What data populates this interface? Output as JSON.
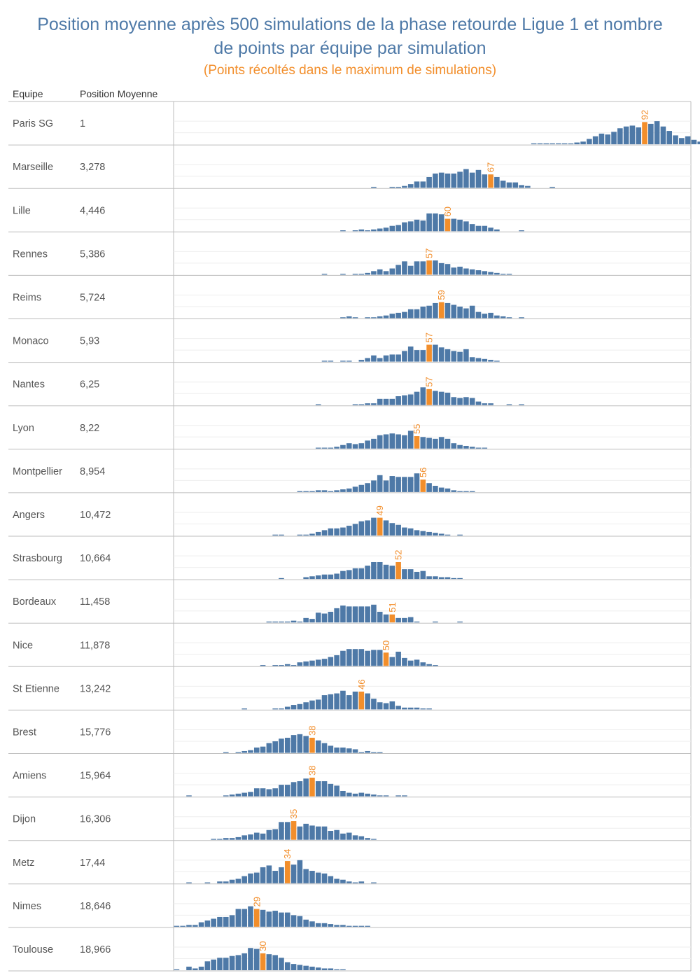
{
  "title": "Position moyenne après 500 simulations de la phase retourde Ligue 1 et nombre de points par équipe par simulation",
  "title_lines": [
    "Position moyenne après 500 simulations de la phase retourde Ligue 1 et nombre",
    "de points par équipe par simulation"
  ],
  "subtitle": "(Points récoltés dans le maximum de simulations)",
  "headers": {
    "team": "Equipe",
    "position": "Position Moyenne"
  },
  "colors": {
    "bar": "#4e79a7",
    "highlight": "#f28e2b",
    "title": "#4e79a7",
    "subtitle": "#f28e2b"
  },
  "chart_data": {
    "type": "bar",
    "title": "Position moyenne après 500 simulations de la phase retourde Ligue 1 et nombre de points par équipe par simulation",
    "subtitle": "(Points récoltés dans le maximum de simulations)",
    "xlabel": "",
    "ylabel": "",
    "x_range": [
      16,
      99
    ],
    "grid": true,
    "teams": [
      {
        "name": "Paris SG",
        "position": "1",
        "peak": 92,
        "start": 74,
        "counts": [
          1,
          1,
          1,
          1,
          1,
          1,
          0.5,
          2,
          3,
          6,
          9,
          12,
          11,
          14,
          18,
          20,
          21,
          19,
          25,
          23,
          26,
          20,
          15,
          10,
          7,
          9,
          5,
          3
        ]
      },
      {
        "name": "Marseille",
        "position": "3,278",
        "start": 48,
        "peak": 67,
        "counts": [
          1,
          0,
          0,
          1,
          1,
          2,
          4,
          7,
          7,
          12,
          16,
          17,
          16,
          16,
          18,
          21,
          17,
          20,
          15,
          15,
          12,
          8,
          6,
          6,
          3,
          2,
          0,
          0,
          0,
          1
        ]
      },
      {
        "name": "Lille",
        "position": "4,446",
        "start": 43,
        "peak": 60,
        "counts": [
          1,
          0,
          1,
          2,
          1,
          2,
          3,
          4,
          6,
          7,
          10,
          11,
          13,
          12,
          20,
          20,
          19,
          14,
          14,
          13,
          11,
          8,
          6,
          6,
          4,
          2,
          0,
          0,
          0,
          1
        ]
      },
      {
        "name": "Rennes",
        "position": "5,386",
        "start": 40,
        "peak": 57,
        "counts": [
          1,
          0,
          0,
          1,
          0,
          1,
          1,
          2,
          4,
          6,
          4,
          7,
          11,
          15,
          10,
          15,
          15,
          16,
          16,
          13,
          12,
          8,
          9,
          7,
          6,
          5,
          4,
          3,
          2,
          1,
          1
        ]
      },
      {
        "name": "Reims",
        "position": "5,724",
        "start": 43,
        "peak": 59,
        "counts": [
          1,
          2,
          1,
          0,
          1,
          1,
          2,
          3,
          5,
          6,
          7,
          10,
          10,
          13,
          14,
          17,
          18,
          17,
          15,
          13,
          11,
          14,
          7,
          5,
          6,
          3,
          2,
          1,
          0,
          1
        ]
      },
      {
        "name": "Monaco",
        "position": "5,93",
        "start": 40,
        "peak": 57,
        "counts": [
          1,
          1,
          0,
          1,
          1,
          0,
          2,
          4,
          7,
          4,
          7,
          8,
          8,
          12,
          17,
          13,
          13,
          19,
          19,
          16,
          14,
          12,
          11,
          14,
          5,
          4,
          3,
          2,
          1
        ]
      },
      {
        "name": "Nantes",
        "position": "6,25",
        "start": 39,
        "peak": 57,
        "counts": [
          1,
          0,
          0,
          0,
          0,
          0,
          1,
          1,
          2,
          2,
          7,
          7,
          7,
          10,
          11,
          12,
          15,
          20,
          18,
          16,
          15,
          14,
          9,
          8,
          9,
          8,
          4,
          2,
          2,
          0,
          0,
          1,
          0,
          1
        ]
      },
      {
        "name": "Lyon",
        "position": "8,22",
        "start": 39,
        "peak": 55,
        "counts": [
          1,
          1,
          1,
          2,
          4,
          6,
          5,
          6,
          9,
          11,
          15,
          16,
          17,
          16,
          15,
          20,
          14,
          13,
          12,
          11,
          13,
          11,
          6,
          4,
          3,
          2,
          1,
          1
        ]
      },
      {
        "name": "Montpellier",
        "position": "8,954",
        "start": 36,
        "peak": 56,
        "counts": [
          1,
          1,
          1,
          2,
          2,
          1,
          2,
          3,
          4,
          6,
          8,
          10,
          13,
          19,
          13,
          18,
          17,
          17,
          17,
          21,
          14,
          10,
          7,
          5,
          4,
          2,
          1,
          1,
          1
        ]
      },
      {
        "name": "Angers",
        "position": "10,472",
        "start": 32,
        "peak": 49,
        "counts": [
          1,
          1,
          0,
          0,
          1,
          1,
          2,
          4,
          6,
          8,
          8,
          9,
          11,
          13,
          16,
          17,
          20,
          20,
          17,
          14,
          12,
          9,
          8,
          6,
          5,
          4,
          3,
          2,
          1,
          0,
          1
        ]
      },
      {
        "name": "Strasbourg",
        "position": "10,664",
        "start": 33,
        "peak": 52,
        "counts": [
          1,
          0,
          0,
          0,
          2,
          3,
          4,
          5,
          5,
          6,
          9,
          10,
          12,
          12,
          15,
          19,
          19,
          16,
          15,
          19,
          11,
          11,
          8,
          9,
          3,
          3,
          2,
          2,
          1,
          1
        ]
      },
      {
        "name": "Bordeaux",
        "position": "11,458",
        "start": 31,
        "peak": 51,
        "counts": [
          1,
          1,
          1,
          1,
          2,
          1,
          5,
          4,
          11,
          10,
          12,
          16,
          19,
          18,
          18,
          18,
          18,
          20,
          12,
          9,
          9,
          5,
          5,
          6,
          1,
          0,
          0,
          1,
          0,
          0,
          0,
          1
        ]
      },
      {
        "name": "Nice",
        "position": "11,878",
        "start": 30,
        "peak": 50,
        "counts": [
          1,
          0,
          1,
          1,
          2,
          1,
          4,
          5,
          6,
          7,
          8,
          10,
          12,
          17,
          19,
          19,
          19,
          17,
          18,
          18,
          15,
          10,
          16,
          9,
          6,
          7,
          4,
          2,
          1
        ]
      },
      {
        "name": "St Etienne",
        "position": "13,242",
        "start": 27,
        "peak": 46,
        "counts": [
          1,
          0,
          0,
          0,
          0,
          1,
          1,
          3,
          5,
          6,
          8,
          10,
          11,
          16,
          17,
          18,
          21,
          16,
          20,
          20,
          18,
          12,
          8,
          7,
          9,
          4,
          2,
          2,
          2,
          1,
          1
        ]
      },
      {
        "name": "Brest",
        "position": "15,776",
        "start": 24,
        "peak": 38,
        "counts": [
          1,
          0,
          1,
          2,
          3,
          6,
          7,
          11,
          13,
          16,
          17,
          20,
          21,
          19,
          17,
          14,
          11,
          8,
          6,
          6,
          5,
          4,
          1,
          2,
          1,
          1
        ]
      },
      {
        "name": "Amiens",
        "position": "15,964",
        "start": 18,
        "peak": 38,
        "counts": [
          1,
          0,
          0,
          0,
          0,
          0,
          1,
          2,
          3,
          4,
          5,
          9,
          9,
          8,
          9,
          13,
          13,
          16,
          17,
          20,
          21,
          17,
          17,
          14,
          12,
          6,
          4,
          3,
          4,
          3,
          2,
          1,
          1,
          0,
          1,
          1
        ]
      },
      {
        "name": "Dijon",
        "position": "16,306",
        "start": 22,
        "peak": 35,
        "counts": [
          1,
          1,
          2,
          2,
          3,
          5,
          6,
          8,
          7,
          11,
          12,
          20,
          20,
          21,
          15,
          18,
          16,
          15,
          15,
          10,
          11,
          7,
          8,
          5,
          4,
          2,
          1
        ]
      },
      {
        "name": "Metz",
        "position": "17,44",
        "start": 18,
        "peak": 34,
        "counts": [
          1,
          0,
          0,
          1,
          0,
          2,
          2,
          4,
          5,
          8,
          11,
          12,
          18,
          20,
          14,
          18,
          25,
          21,
          26,
          16,
          14,
          12,
          11,
          8,
          5,
          4,
          2,
          1,
          2,
          0,
          1
        ]
      },
      {
        "name": "Nimes",
        "position": "18,646",
        "start": 16,
        "peak": 29,
        "counts": [
          1,
          1,
          2,
          2,
          5,
          7,
          9,
          11,
          11,
          13,
          20,
          20,
          23,
          20,
          19,
          17,
          18,
          16,
          16,
          13,
          12,
          8,
          6,
          4,
          4,
          3,
          2,
          2,
          1,
          1,
          1,
          1
        ]
      },
      {
        "name": "Toulouse",
        "position": "18,966",
        "start": 16,
        "peak": 30,
        "counts": [
          1,
          0,
          4,
          2,
          4,
          10,
          12,
          14,
          14,
          16,
          17,
          19,
          25,
          24,
          19,
          18,
          17,
          14,
          9,
          7,
          6,
          5,
          4,
          3,
          2,
          2,
          1,
          1
        ]
      }
    ]
  }
}
